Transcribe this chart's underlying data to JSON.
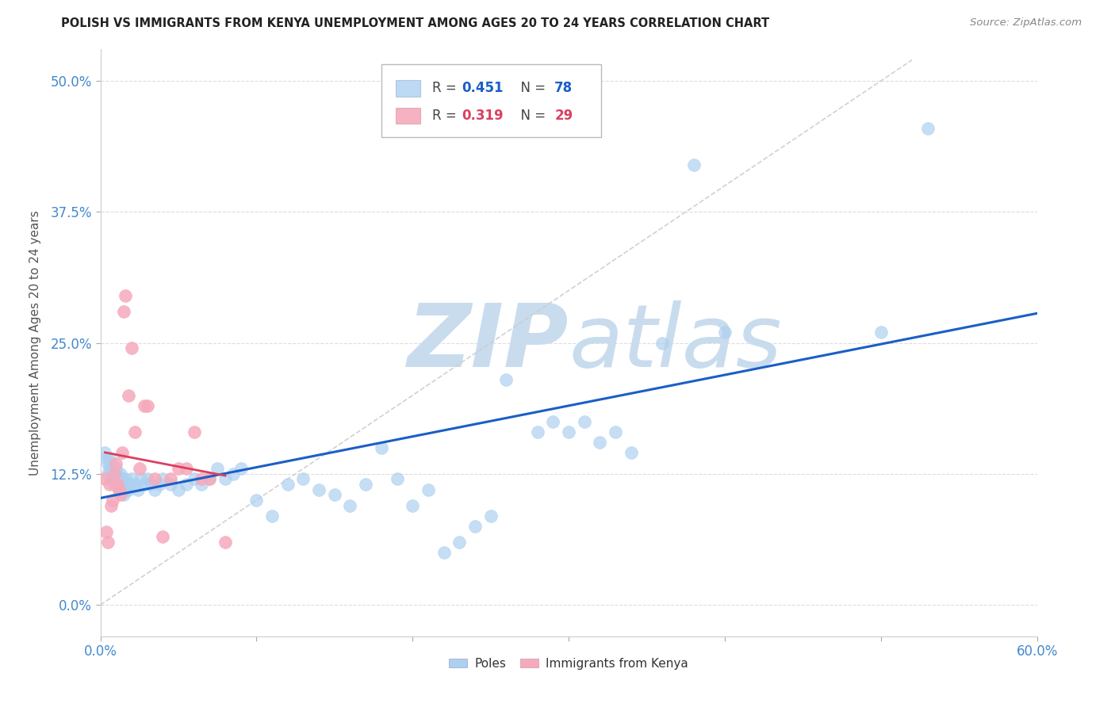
{
  "title": "POLISH VS IMMIGRANTS FROM KENYA UNEMPLOYMENT AMONG AGES 20 TO 24 YEARS CORRELATION CHART",
  "source": "Source: ZipAtlas.com",
  "ylabel": "Unemployment Among Ages 20 to 24 years",
  "xlim": [
    0.0,
    0.6
  ],
  "ylim": [
    -0.03,
    0.53
  ],
  "yticks": [
    0.0,
    0.125,
    0.25,
    0.375,
    0.5
  ],
  "ytick_labels": [
    "0.0%",
    "12.5%",
    "25.0%",
    "37.5%",
    "50.0%"
  ],
  "xticks": [
    0.0,
    0.1,
    0.2,
    0.3,
    0.4,
    0.5,
    0.6
  ],
  "xtick_labels": [
    "0.0%",
    "",
    "",
    "",
    "",
    "",
    "60.0%"
  ],
  "blue_R": "0.451",
  "blue_N": "78",
  "pink_R": "0.319",
  "pink_N": "29",
  "blue_color": "#ADD0F0",
  "pink_color": "#F5AABB",
  "blue_line_color": "#1B5EC7",
  "pink_line_color": "#D94060",
  "dashed_line_color": "#CCCCCC",
  "watermark_zip": "ZIP",
  "watermark_atlas": "atlas",
  "watermark_color": "#C8DCEE",
  "tick_color": "#4488CC",
  "blue_x": [
    0.003,
    0.004,
    0.005,
    0.005,
    0.006,
    0.006,
    0.007,
    0.007,
    0.008,
    0.008,
    0.009,
    0.009,
    0.01,
    0.01,
    0.011,
    0.011,
    0.012,
    0.012,
    0.013,
    0.013,
    0.014,
    0.014,
    0.015,
    0.015,
    0.016,
    0.016,
    0.017,
    0.018,
    0.019,
    0.02,
    0.022,
    0.024,
    0.026,
    0.028,
    0.03,
    0.032,
    0.035,
    0.038,
    0.04,
    0.045,
    0.05,
    0.055,
    0.06,
    0.065,
    0.07,
    0.075,
    0.08,
    0.085,
    0.09,
    0.1,
    0.11,
    0.12,
    0.13,
    0.14,
    0.15,
    0.16,
    0.17,
    0.18,
    0.19,
    0.2,
    0.21,
    0.22,
    0.23,
    0.24,
    0.25,
    0.26,
    0.28,
    0.29,
    0.3,
    0.31,
    0.32,
    0.33,
    0.34,
    0.36,
    0.38,
    0.4,
    0.5,
    0.53
  ],
  "blue_y": [
    0.145,
    0.14,
    0.135,
    0.125,
    0.14,
    0.13,
    0.135,
    0.125,
    0.13,
    0.12,
    0.125,
    0.115,
    0.13,
    0.12,
    0.125,
    0.115,
    0.12,
    0.11,
    0.125,
    0.115,
    0.12,
    0.11,
    0.115,
    0.105,
    0.12,
    0.11,
    0.115,
    0.11,
    0.115,
    0.12,
    0.115,
    0.11,
    0.12,
    0.115,
    0.12,
    0.115,
    0.11,
    0.115,
    0.12,
    0.115,
    0.11,
    0.115,
    0.12,
    0.115,
    0.12,
    0.13,
    0.12,
    0.125,
    0.13,
    0.1,
    0.085,
    0.115,
    0.12,
    0.11,
    0.105,
    0.095,
    0.115,
    0.15,
    0.12,
    0.095,
    0.11,
    0.05,
    0.06,
    0.075,
    0.085,
    0.215,
    0.165,
    0.175,
    0.165,
    0.175,
    0.155,
    0.165,
    0.145,
    0.25,
    0.42,
    0.26,
    0.26,
    0.455
  ],
  "pink_x": [
    0.003,
    0.004,
    0.005,
    0.006,
    0.007,
    0.008,
    0.009,
    0.01,
    0.011,
    0.012,
    0.013,
    0.014,
    0.015,
    0.016,
    0.018,
    0.02,
    0.022,
    0.025,
    0.028,
    0.03,
    0.035,
    0.04,
    0.045,
    0.05,
    0.055,
    0.06,
    0.065,
    0.07,
    0.08
  ],
  "pink_y": [
    0.12,
    0.07,
    0.06,
    0.115,
    0.095,
    0.1,
    0.125,
    0.135,
    0.115,
    0.11,
    0.105,
    0.145,
    0.28,
    0.295,
    0.2,
    0.245,
    0.165,
    0.13,
    0.19,
    0.19,
    0.12,
    0.065,
    0.12,
    0.13,
    0.13,
    0.165,
    0.12,
    0.12,
    0.06
  ]
}
